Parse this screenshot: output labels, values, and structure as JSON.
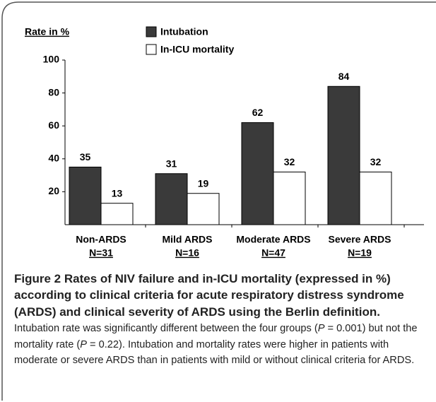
{
  "chart_data": {
    "type": "bar",
    "y_label": "Rate in %",
    "categories": [
      "Non-ARDS",
      "Mild ARDS",
      "Moderate ARDS",
      "Severe ARDS"
    ],
    "category_counts": [
      "N=31",
      "N=16",
      "N=47",
      "N=19"
    ],
    "series": [
      {
        "name": "Intubation",
        "color": "#3a3a3a",
        "values": [
          35,
          31,
          62,
          84
        ]
      },
      {
        "name": "In-ICU mortality",
        "color": "#ffffff",
        "values": [
          13,
          19,
          32,
          32
        ]
      }
    ],
    "ylim": [
      0,
      100
    ],
    "yticks": [
      20,
      40,
      60,
      80,
      100
    ],
    "grid": false,
    "legend": "top"
  },
  "caption": {
    "label": "Figure 2",
    "title": "Rates of NIV failure and in-ICU mortality (expressed in %) according to clinical criteria for acute respiratory distress syndrome (ARDS) and clinical severity of ARDS using the Berlin definition.",
    "body": [
      "Intubation rate was significantly different between the four groups (",
      "P",
      " = 0.001) but not the mortality rate (",
      "P",
      " = 0.22). Intubation and mortality rates were higher in patients with moderate or severe ARDS than in patients with mild or without clinical criteria for ARDS."
    ]
  }
}
